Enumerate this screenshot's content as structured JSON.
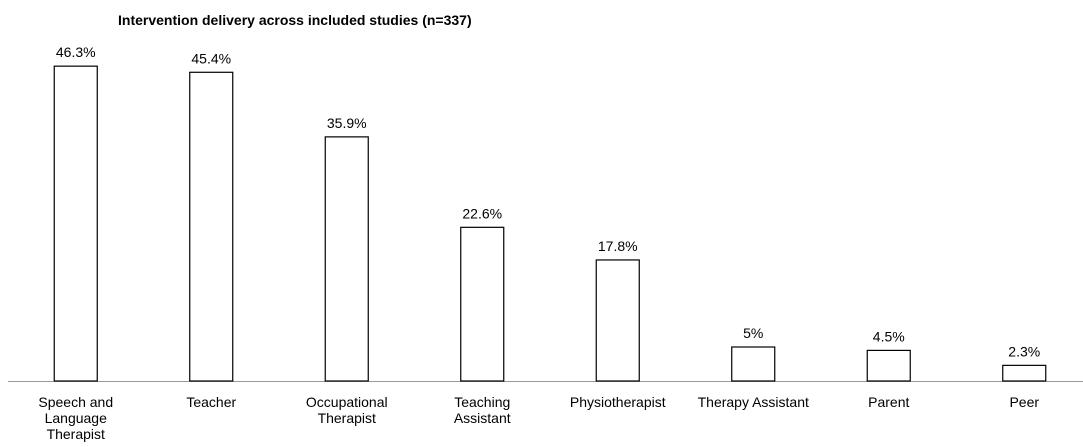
{
  "chart_data": {
    "type": "bar",
    "title": "Intervention delivery across included studies (n=337)",
    "categories": [
      "Speech and\nLanguage\nTherapist",
      "Teacher",
      "Occupational\nTherapist",
      "Teaching\nAssistant",
      "Physiotherapist",
      "Therapy Assistant",
      "Parent",
      "Peer"
    ],
    "values": [
      46.3,
      45.4,
      35.9,
      22.6,
      17.8,
      5,
      4.5,
      2.3
    ],
    "value_labels": [
      "46.3%",
      "45.4%",
      "35.9%",
      "22.6%",
      "17.8%",
      "5%",
      "4.5%",
      "2.3%"
    ],
    "color": "#ffffff",
    "edge_color": "#000000",
    "ylim": [
      0,
      50
    ],
    "grid": false
  }
}
